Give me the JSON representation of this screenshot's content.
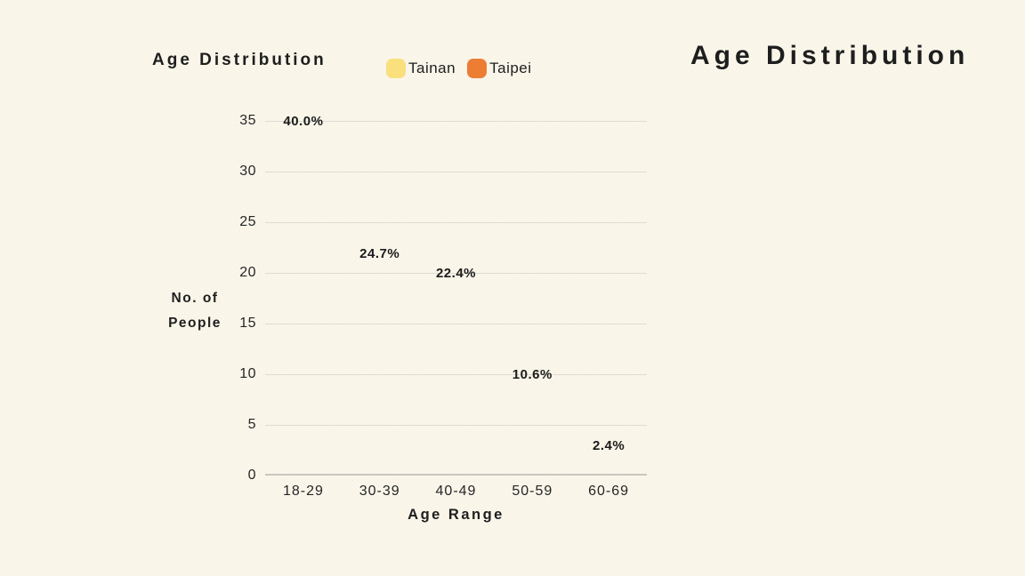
{
  "page": {
    "background": "#FAF6EA",
    "text_color": "#1E1E1E"
  },
  "right_title": "Age Distribution",
  "chart_data": {
    "type": "bar",
    "title": "Age Distribution",
    "xlabel": "Age Range",
    "ylabel": "No. of People",
    "ylabel_lines": [
      "No. of",
      "People"
    ],
    "categories": [
      "18-29",
      "30-39",
      "40-49",
      "50-59",
      "60-69"
    ],
    "y_ticks": [
      0,
      5,
      10,
      15,
      20,
      25,
      30,
      35
    ],
    "ylim": [
      0,
      35
    ],
    "grid": true,
    "bars_visible": false,
    "legend_position": "top",
    "series": [
      {
        "name": "Tainan",
        "color": "#F9E07C"
      },
      {
        "name": "Taipei",
        "color": "#EC7D33"
      }
    ],
    "annotations": [
      {
        "category": "18-29",
        "text": "40.0%",
        "y": 34
      },
      {
        "category": "30-39",
        "text": "24.7%",
        "y": 21
      },
      {
        "category": "40-49",
        "text": "22.4%",
        "y": 19
      },
      {
        "category": "50-59",
        "text": "10.6%",
        "y": 9
      },
      {
        "category": "60-69",
        "text": "2.4%",
        "y": 2
      }
    ],
    "colors": {
      "gridline": "#DEDCD4",
      "axis_line": "#C8C6BF"
    }
  }
}
